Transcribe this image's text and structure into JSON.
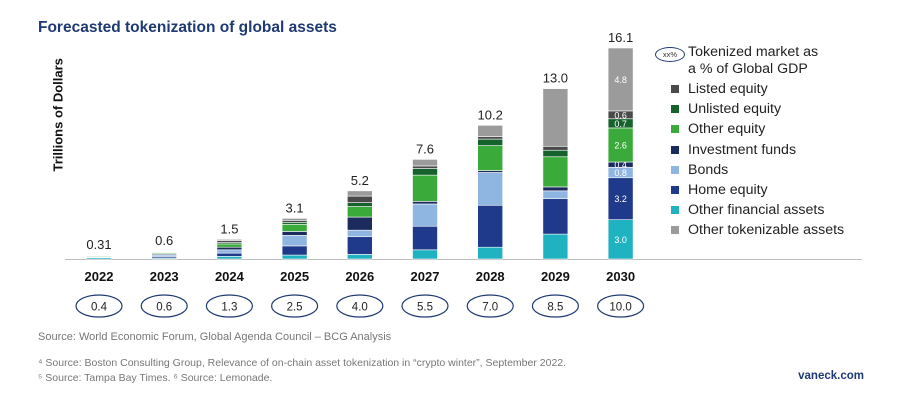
{
  "title": "Forecasted tokenization of global assets",
  "chart_data": {
    "type": "bar",
    "stacked": true,
    "title": "Forecasted tokenization of global assets",
    "xlabel": "",
    "ylabel": "Trillions of Dollars",
    "ylim": [
      0,
      16.1
    ],
    "categories": [
      "2022",
      "2023",
      "2024",
      "2025",
      "2026",
      "2027",
      "2028",
      "2029",
      "2030"
    ],
    "totals": [
      "0.31",
      "0.6",
      "1.5",
      "3.1",
      "5.2",
      "7.6",
      "10.2",
      "13.0",
      "16.1"
    ],
    "gdp_pct": [
      "0.4",
      "0.6",
      "1.3",
      "2.5",
      "4.0",
      "5.5",
      "7.0",
      "8.5",
      "10.0"
    ],
    "series": [
      {
        "name": "Other financial assets",
        "color": "#1fb2c1",
        "values": [
          0.12,
          0.08,
          0.2,
          0.3,
          0.35,
          0.7,
          0.9,
          1.9,
          3.0
        ]
      },
      {
        "name": "Home equity",
        "color": "#1f3a8a",
        "values": [
          0.02,
          0.12,
          0.25,
          0.7,
          1.35,
          1.8,
          3.2,
          2.7,
          3.2
        ]
      },
      {
        "name": "Bonds",
        "color": "#8fb6e1",
        "values": [
          0.02,
          0.1,
          0.25,
          0.8,
          0.5,
          1.7,
          2.5,
          0.6,
          0.8
        ]
      },
      {
        "name": "Investment funds",
        "color": "#1c2b5e",
        "values": [
          0.02,
          0.08,
          0.2,
          0.3,
          1.0,
          0.2,
          0.15,
          0.3,
          0.4
        ]
      },
      {
        "name": "Other equity",
        "color": "#3aab3a",
        "values": [
          0.07,
          0.08,
          0.25,
          0.55,
          0.8,
          2.0,
          1.9,
          2.3,
          2.6
        ]
      },
      {
        "name": "Unlisted equity",
        "color": "#16622d",
        "values": [
          0.02,
          0.04,
          0.1,
          0.15,
          0.3,
          0.5,
          0.5,
          0.5,
          0.7
        ]
      },
      {
        "name": "Listed equity",
        "color": "#4a4a4a",
        "values": [
          0.02,
          0.05,
          0.15,
          0.15,
          0.5,
          0.2,
          0.2,
          0.3,
          0.6
        ]
      },
      {
        "name": "Other tokenizable assets",
        "color": "#9b9b9b",
        "values": [
          0.02,
          0.05,
          0.1,
          0.15,
          0.4,
          0.5,
          0.85,
          4.4,
          4.8
        ]
      }
    ],
    "data_labels": [
      {
        "category": "2030",
        "series": "Other financial assets",
        "text": "3.0"
      },
      {
        "category": "2030",
        "series": "Home equity",
        "text": "3.2"
      },
      {
        "category": "2030",
        "series": "Bonds",
        "text": "0.8"
      },
      {
        "category": "2030",
        "series": "Investment funds",
        "text": "0.4"
      },
      {
        "category": "2030",
        "series": "Other equity",
        "text": "2.6"
      },
      {
        "category": "2030",
        "series": "Unlisted equity",
        "text": "0.7"
      },
      {
        "category": "2030",
        "series": "Listed equity",
        "text": "0.6"
      },
      {
        "category": "2030",
        "series": "Other tokenizable assets",
        "text": "4.8"
      }
    ],
    "legend": {
      "gdp_marker": "xx%",
      "gdp_text_line1": "Tokenized market as",
      "gdp_text_line2": "a % of Global GDP",
      "entries": [
        "Listed equity",
        "Unlisted equity",
        "Other equity",
        "Investment funds",
        "Bonds",
        "Home equity",
        "Other financial assets",
        "Other tokenizable assets"
      ],
      "colors": [
        "#4a4a4a",
        "#16622d",
        "#3aab3a",
        "#1c2b5e",
        "#8fb6e1",
        "#1f3a8a",
        "#1fb2c1",
        "#9b9b9b"
      ]
    }
  },
  "source": "Source: World Economic Forum, Global Agenda Council – BCG Analysis",
  "footnote1": "⁴ Source: Boston Consulting Group, Relevance of on-chain asset tokenization in “crypto winter”, September 2022.",
  "footnote2": "⁵ Source: Tampa Bay Times. ⁶ Source: Lemonade.",
  "brand": "vaneck.com"
}
